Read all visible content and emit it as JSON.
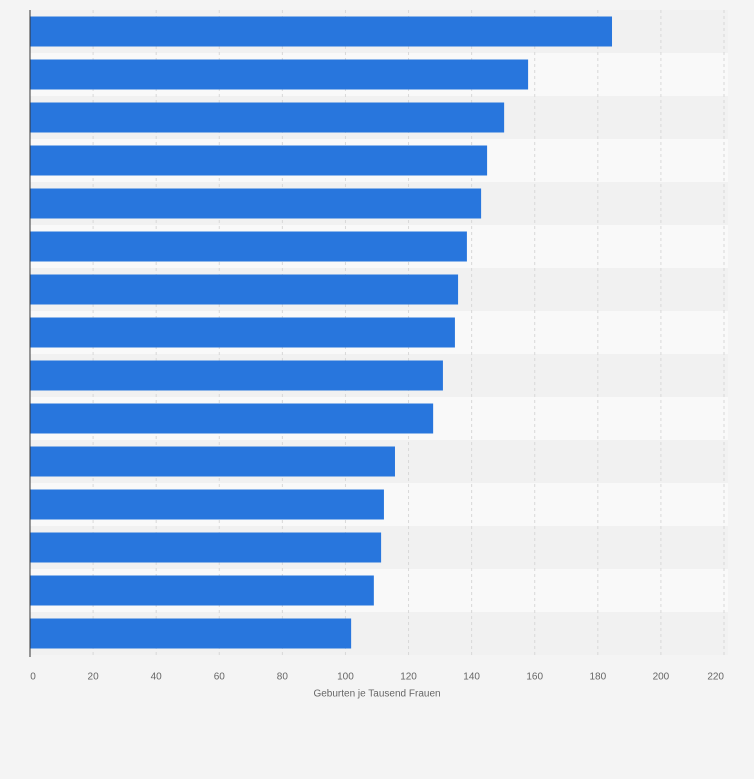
{
  "chart_data": {
    "type": "bar",
    "orientation": "horizontal",
    "x_label": "Geburten je Tausend Frauen",
    "categories": [
      null,
      null,
      null,
      null,
      null,
      null,
      null,
      null,
      null,
      null,
      null,
      null,
      null,
      null,
      null
    ],
    "values": [
      184.5,
      157.9,
      150.3,
      144.9,
      143,
      138.5,
      135.7,
      134.7,
      130.9,
      127.8,
      115.7,
      112.2,
      111.3,
      109,
      101.8
    ],
    "color": "#2876dd",
    "xlim": [
      0,
      220
    ],
    "xticks": [
      0,
      20,
      40,
      60,
      80,
      100,
      120,
      140,
      160,
      180,
      200,
      220
    ],
    "grid": true
  }
}
